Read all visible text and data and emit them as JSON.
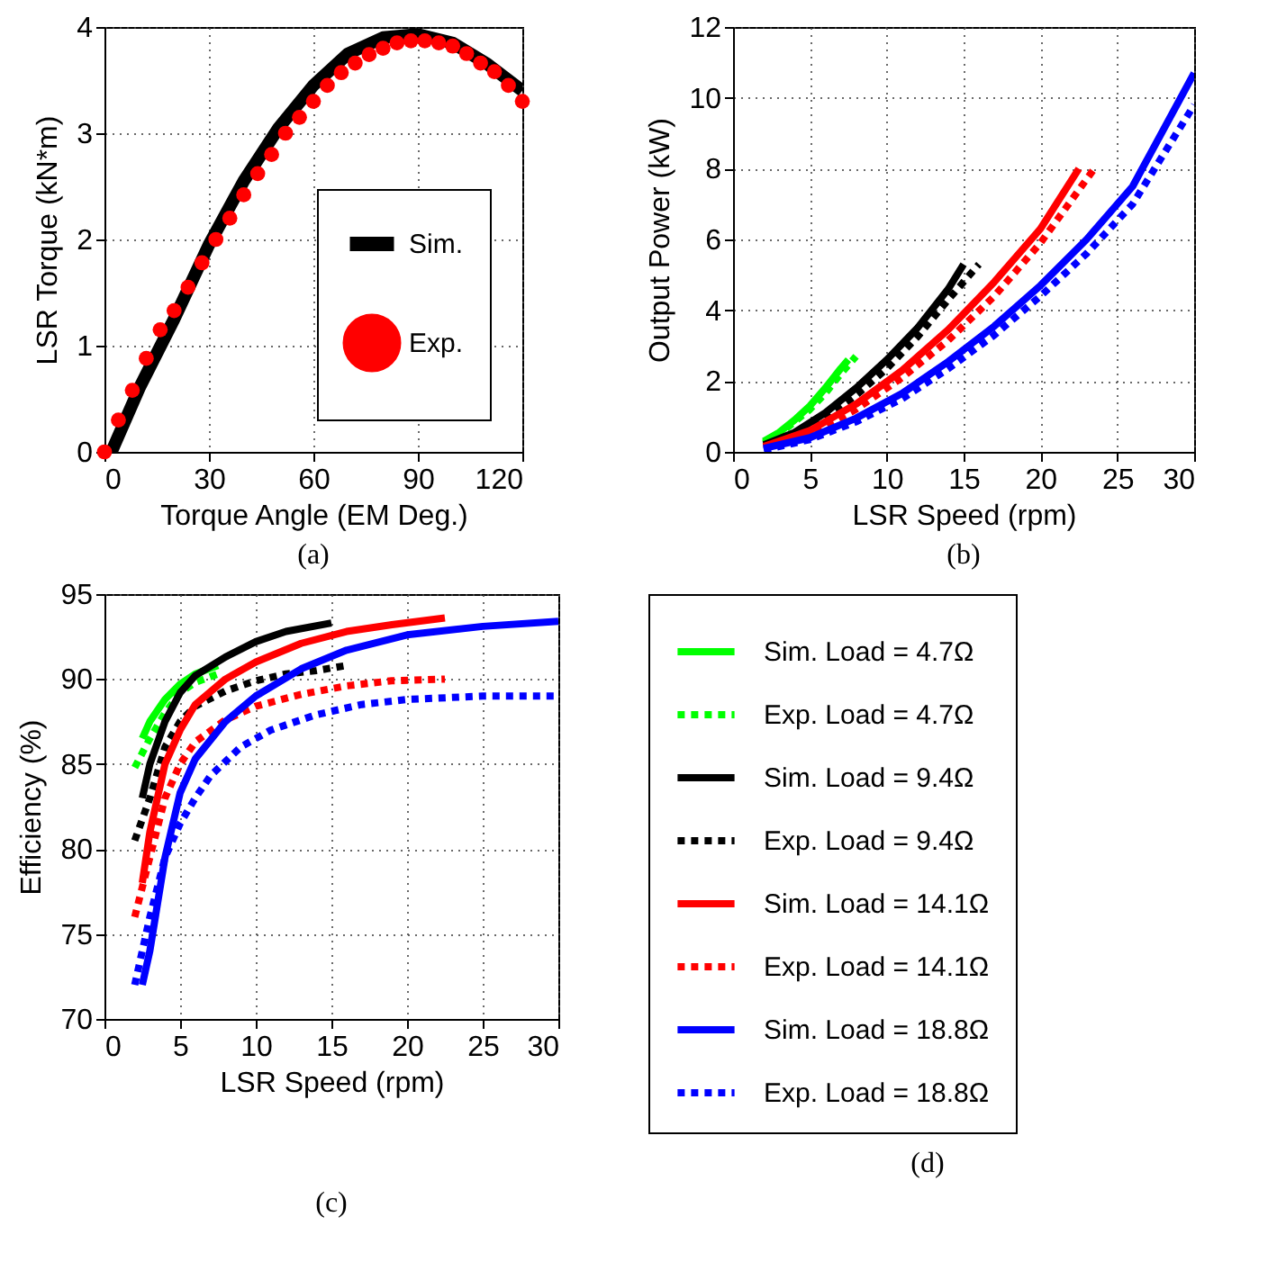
{
  "chart_data": [
    {
      "type": "line",
      "xlabel": "Torque Angle (EM Deg.)",
      "ylabel": "LSR Torque (kN*m)",
      "annotations": [
        "(a)"
      ],
      "xlim": [
        0,
        120
      ],
      "xticks": [
        0,
        30,
        60,
        90,
        120
      ],
      "ylim": [
        0,
        4
      ],
      "yticks": [
        0,
        1,
        2,
        3,
        4
      ],
      "grid": true,
      "legend": "bottom right",
      "series": [
        {
          "name": "Sim.",
          "color": "#000000",
          "x": [
            2,
            10,
            20,
            30,
            40,
            50,
            60,
            70,
            80,
            90,
            100,
            110,
            120
          ],
          "values": [
            0,
            0.6,
            1.25,
            1.95,
            2.55,
            3.05,
            3.45,
            3.75,
            3.9,
            3.93,
            3.85,
            3.65,
            3.4
          ]
        },
        {
          "name": "Exp.",
          "type": "scatter",
          "marker": "circle",
          "color": "#ff0000",
          "x": [
            0,
            4,
            8,
            12,
            16,
            20,
            24,
            28,
            32,
            36,
            40,
            44,
            48,
            52,
            56,
            60,
            64,
            68,
            72,
            76,
            80,
            84,
            88,
            92,
            96,
            100,
            104,
            108,
            112,
            116,
            120
          ],
          "values": [
            0,
            0.3,
            0.58,
            0.88,
            1.15,
            1.33,
            1.55,
            1.78,
            2.0,
            2.2,
            2.42,
            2.62,
            2.8,
            3.0,
            3.15,
            3.3,
            3.45,
            3.57,
            3.66,
            3.74,
            3.8,
            3.85,
            3.87,
            3.87,
            3.85,
            3.82,
            3.75,
            3.66,
            3.58,
            3.45,
            3.3
          ]
        }
      ]
    },
    {
      "type": "line",
      "xlabel": "LSR Speed (rpm)",
      "ylabel": "Output Power (kW)",
      "annotations": [
        "(b)"
      ],
      "xlim": [
        0,
        30
      ],
      "xticks": [
        0,
        5,
        10,
        15,
        20,
        25,
        30
      ],
      "ylim": [
        0,
        12
      ],
      "yticks": [
        0,
        2,
        4,
        6,
        8,
        10,
        12
      ],
      "grid": true,
      "series": [
        {
          "color": "#00ff00",
          "line_style": "solid",
          "x": [
            2,
            3,
            4,
            5,
            6,
            7,
            7.5
          ],
          "values": [
            0.3,
            0.55,
            0.9,
            1.3,
            1.8,
            2.35,
            2.6
          ]
        },
        {
          "color": "#00ff00",
          "line_style": "dotted",
          "x": [
            2,
            3,
            4,
            5,
            6,
            7,
            8
          ],
          "values": [
            0.25,
            0.5,
            0.85,
            1.2,
            1.65,
            2.2,
            2.7
          ]
        },
        {
          "color": "#000000",
          "line_style": "solid",
          "x": [
            2,
            4,
            6,
            8,
            10,
            12,
            14,
            15
          ],
          "values": [
            0.2,
            0.55,
            1.1,
            1.8,
            2.6,
            3.5,
            4.6,
            5.3
          ]
        },
        {
          "color": "#000000",
          "line_style": "dotted",
          "x": [
            2,
            4,
            6,
            8,
            10,
            12,
            14,
            16
          ],
          "values": [
            0.15,
            0.45,
            0.95,
            1.6,
            2.35,
            3.25,
            4.3,
            5.3
          ]
        },
        {
          "color": "#ff0000",
          "line_style": "solid",
          "x": [
            2,
            5,
            8,
            11,
            14,
            17,
            20,
            22.5
          ],
          "values": [
            0.15,
            0.6,
            1.35,
            2.3,
            3.45,
            4.8,
            6.3,
            8.0
          ]
        },
        {
          "color": "#ff0000",
          "line_style": "dotted",
          "x": [
            2,
            5,
            8,
            11,
            14,
            17,
            20,
            23.5
          ],
          "values": [
            0.1,
            0.5,
            1.2,
            2.1,
            3.15,
            4.4,
            5.9,
            8.0
          ]
        },
        {
          "color": "#0000ff",
          "line_style": "solid",
          "x": [
            2,
            5,
            8,
            11,
            14,
            17,
            20,
            23,
            26,
            30
          ],
          "values": [
            0.1,
            0.4,
            0.95,
            1.65,
            2.55,
            3.55,
            4.7,
            6.0,
            7.5,
            10.7
          ]
        },
        {
          "color": "#0000ff",
          "line_style": "dotted",
          "x": [
            2,
            5,
            8,
            11,
            14,
            17,
            20,
            23,
            26,
            30
          ],
          "values": [
            0.05,
            0.35,
            0.85,
            1.5,
            2.35,
            3.3,
            4.4,
            5.6,
            7.0,
            9.8
          ]
        }
      ]
    },
    {
      "type": "line",
      "xlabel": "LSR Speed (rpm)",
      "ylabel": "Efficiency (%)",
      "annotations": [
        "(c)",
        "(d)"
      ],
      "xlim": [
        0,
        30
      ],
      "xticks": [
        0,
        5,
        10,
        15,
        20,
        25,
        30
      ],
      "ylim": [
        70,
        95
      ],
      "yticks": [
        70,
        75,
        80,
        85,
        90,
        95
      ],
      "grid": true,
      "legend": "right",
      "series": [
        {
          "name": "Sim. Load = 4.7Ω",
          "color": "#00ff00",
          "line_style": "solid",
          "x": [
            2.5,
            3,
            4,
            5,
            6,
            7.5
          ],
          "values": [
            86.5,
            87.5,
            88.8,
            89.7,
            90.3,
            90.8
          ]
        },
        {
          "name": "Exp. Load = 4.7Ω",
          "color": "#00ff00",
          "line_style": "dotted",
          "x": [
            2,
            3,
            4,
            5,
            6,
            7.5
          ],
          "values": [
            84.8,
            86.5,
            88,
            89.2,
            89.8,
            90.3
          ]
        },
        {
          "name": "Sim. Load = 9.4Ω",
          "color": "#000000",
          "line_style": "solid",
          "x": [
            2.5,
            3,
            4,
            5,
            6,
            8,
            10,
            12,
            15
          ],
          "values": [
            83,
            85,
            87.5,
            89.2,
            90.2,
            91.3,
            92.2,
            92.8,
            93.3
          ]
        },
        {
          "name": "Exp. Load = 9.4Ω",
          "color": "#000000",
          "line_style": "dotted",
          "x": [
            2,
            3,
            4,
            5,
            6,
            8,
            10,
            12,
            14,
            16
          ],
          "values": [
            80.5,
            83,
            86,
            87.5,
            88.4,
            89.3,
            89.9,
            90.3,
            90.5,
            90.8
          ]
        },
        {
          "name": "Sim. Load = 14.1Ω",
          "color": "#ff0000",
          "line_style": "solid",
          "x": [
            2.5,
            3,
            4,
            5,
            6,
            8,
            10,
            13,
            16,
            19,
            22.5
          ],
          "values": [
            78,
            81,
            85,
            87,
            88.5,
            90,
            91,
            92.1,
            92.8,
            93.2,
            93.6
          ]
        },
        {
          "name": "Exp. Load = 14.1Ω",
          "color": "#ff0000",
          "line_style": "dotted",
          "x": [
            2,
            3,
            4,
            5,
            6,
            8,
            10,
            13,
            16,
            19,
            22.5
          ],
          "values": [
            76,
            79.5,
            83,
            85,
            86.3,
            87.6,
            88.4,
            89.1,
            89.6,
            89.9,
            90
          ]
        },
        {
          "name": "Sim. Load = 18.8Ω",
          "color": "#0000ff",
          "line_style": "solid",
          "x": [
            2.5,
            3,
            4,
            5,
            6,
            8,
            10,
            13,
            16,
            20,
            25,
            30
          ],
          "values": [
            72,
            74,
            79.5,
            83.3,
            85.3,
            87.5,
            89,
            90.6,
            91.7,
            92.6,
            93.1,
            93.4
          ]
        },
        {
          "name": "Exp. Load = 18.8Ω",
          "color": "#0000ff",
          "line_style": "dotted",
          "x": [
            2,
            3,
            4,
            5,
            6,
            7,
            9,
            11,
            14,
            17,
            20,
            25,
            30
          ],
          "values": [
            72,
            76,
            79.5,
            81.5,
            83,
            84.3,
            86,
            87,
            87.9,
            88.5,
            88.8,
            89,
            89
          ]
        }
      ]
    }
  ]
}
